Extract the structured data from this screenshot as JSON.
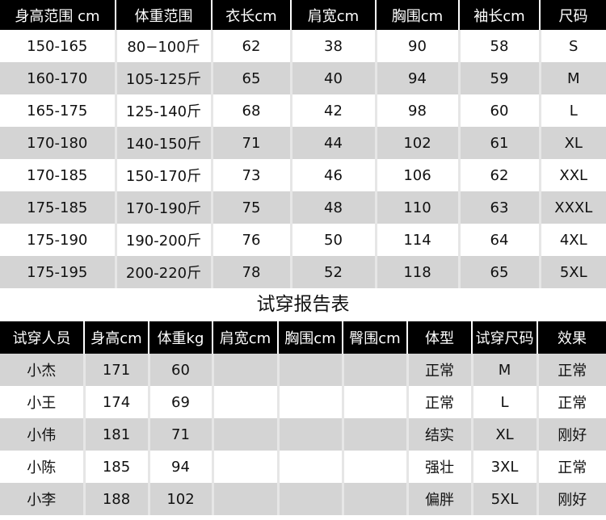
{
  "size_table": {
    "headers": [
      "身高范围 cm",
      "体重范围",
      "衣长cm",
      "肩宽cm",
      "胸围cm",
      "袖长cm",
      "尺码"
    ],
    "rows": [
      [
        "150-165",
        "80−100斤",
        "62",
        "38",
        "90",
        "58",
        "S"
      ],
      [
        "160-170",
        "105-125斤",
        "65",
        "40",
        "94",
        "59",
        "M"
      ],
      [
        "165-175",
        "125-140斤",
        "68",
        "42",
        "98",
        "60",
        "L"
      ],
      [
        "170-180",
        "140-150斤",
        "71",
        "44",
        "102",
        "61",
        "XL"
      ],
      [
        "170-185",
        "150-170斤",
        "73",
        "46",
        "106",
        "62",
        "XXL"
      ],
      [
        "175-185",
        "170-190斤",
        "75",
        "48",
        "110",
        "63",
        "XXXL"
      ],
      [
        "175-190",
        "190-200斤",
        "76",
        "50",
        "114",
        "64",
        "4XL"
      ],
      [
        "175-195",
        "200-220斤",
        "78",
        "52",
        "118",
        "65",
        "5XL"
      ]
    ]
  },
  "report_title": "试穿报告表",
  "report_table": {
    "headers": [
      "试穿人员",
      "身高cm",
      "体重kg",
      "肩宽cm",
      "胸围cm",
      "臀围cm",
      "体型",
      "试穿尺码",
      "效果"
    ],
    "rows": [
      [
        "小杰",
        "171",
        "60",
        "",
        "",
        "",
        "正常",
        "M",
        "正常"
      ],
      [
        "小王",
        "174",
        "69",
        "",
        "",
        "",
        "正常",
        "L",
        "正常"
      ],
      [
        "小伟",
        "181",
        "71",
        "",
        "",
        "",
        "结实",
        "XL",
        "刚好"
      ],
      [
        "小陈",
        "185",
        "94",
        "",
        "",
        "",
        "强壮",
        "3XL",
        "正常"
      ],
      [
        "小李",
        "188",
        "102",
        "",
        "",
        "",
        "偏胖",
        "5XL",
        "刚好"
      ]
    ]
  }
}
